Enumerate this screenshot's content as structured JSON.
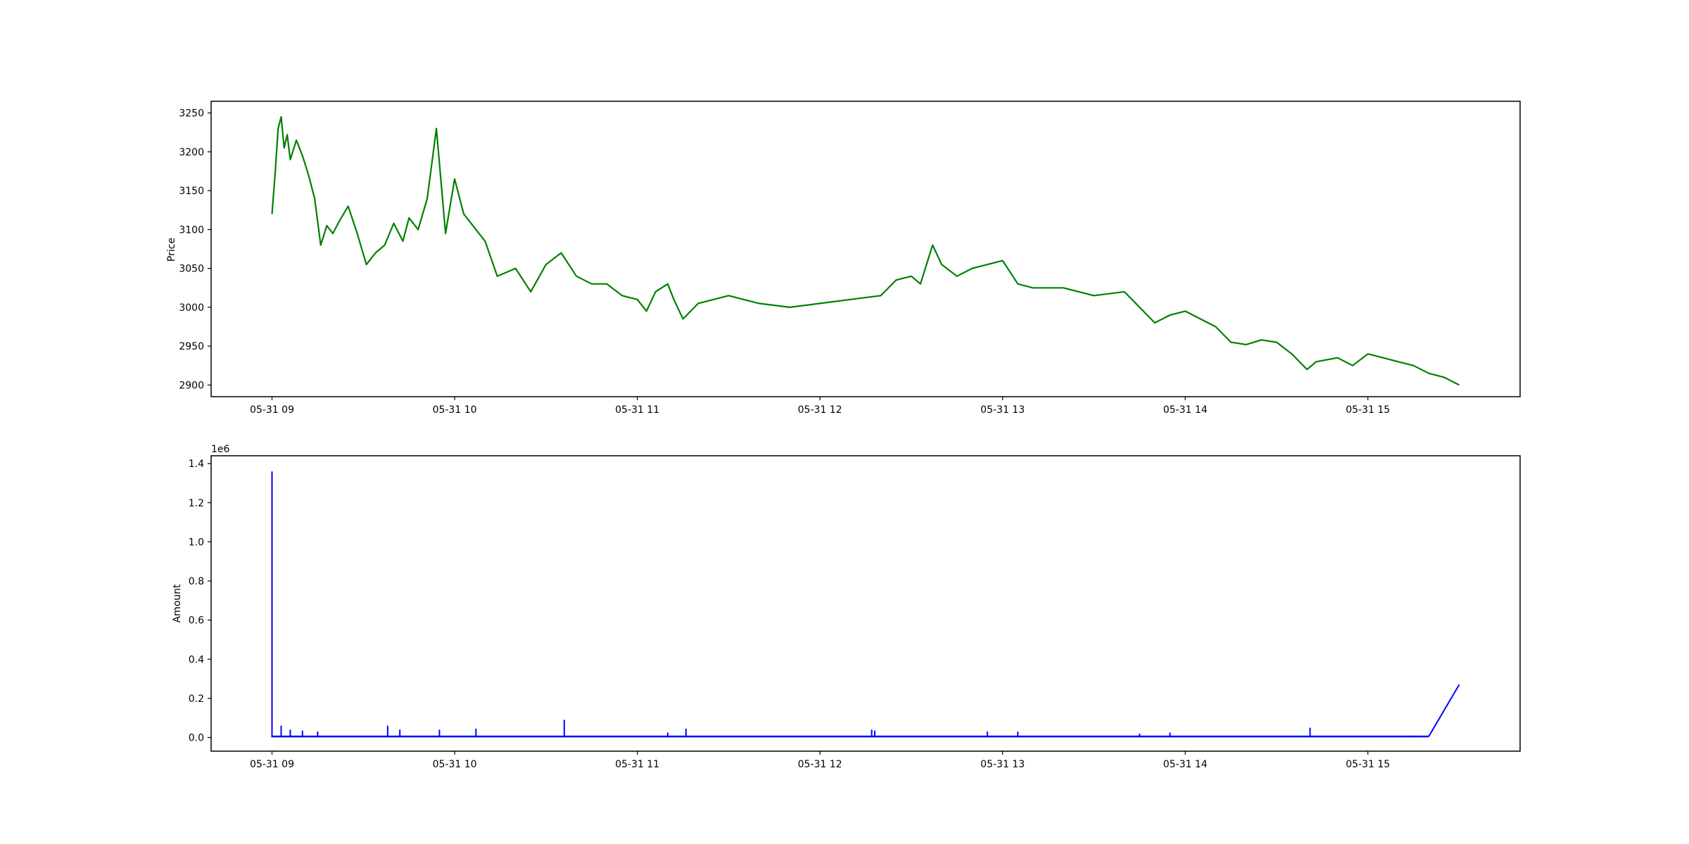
{
  "figure": {
    "background": "#ffffff"
  },
  "chart_data": [
    {
      "type": "line",
      "title": "",
      "xlabel": "",
      "ylabel": "Price",
      "ylim": [
        2885,
        3265
      ],
      "yticks": [
        2900,
        2950,
        3000,
        3050,
        3100,
        3150,
        3200,
        3250
      ],
      "xlim": [
        "05-31 08:40",
        "15:50"
      ],
      "xticks": [
        {
          "label": "05-31 09",
          "x": "09:00"
        },
        {
          "label": "05-31 10",
          "x": "10:00"
        },
        {
          "label": "05-31 11",
          "x": "11:00"
        },
        {
          "label": "05-31 12",
          "x": "12:00"
        },
        {
          "label": "05-31 13",
          "x": "13:00"
        },
        {
          "label": "05-31 14",
          "x": "14:00"
        },
        {
          "label": "05-31 15",
          "x": "15:00"
        }
      ],
      "grid": false,
      "series": [
        {
          "color": "#008000",
          "x": [
            "09:00",
            "09:01",
            "09:02",
            "09:03",
            "09:04",
            "09:05",
            "09:06",
            "09:08",
            "09:10",
            "09:12",
            "09:14",
            "09:16",
            "09:18",
            "09:20",
            "09:22",
            "09:25",
            "09:28",
            "09:31",
            "09:34",
            "09:37",
            "09:40",
            "09:43",
            "09:45",
            "09:48",
            "09:51",
            "09:54",
            "09:57",
            "10:00",
            "10:03",
            "10:05",
            "10:07",
            "10:10",
            "10:14",
            "10:20",
            "10:25",
            "10:30",
            "10:35",
            "10:40",
            "10:45",
            "10:50",
            "10:55",
            "11:00",
            "11:03",
            "11:06",
            "11:10",
            "11:12",
            "11:15",
            "11:20",
            "11:30",
            "11:40",
            "11:50",
            "12:00",
            "12:10",
            "12:20",
            "12:25",
            "12:30",
            "12:33",
            "12:37",
            "12:40",
            "12:45",
            "12:50",
            "12:55",
            "13:00",
            "13:05",
            "13:10",
            "13:20",
            "13:30",
            "13:40",
            "13:45",
            "13:50",
            "13:55",
            "14:00",
            "14:05",
            "14:10",
            "14:15",
            "14:20",
            "14:25",
            "14:30",
            "14:35",
            "14:40",
            "14:43",
            "14:50",
            "14:55",
            "15:00",
            "15:05",
            "15:10",
            "15:15",
            "15:20",
            "15:25",
            "15:30"
          ],
          "y": [
            3120,
            3170,
            3230,
            3245,
            3205,
            3222,
            3190,
            3215,
            3195,
            3170,
            3140,
            3080,
            3105,
            3095,
            3110,
            3130,
            3095,
            3055,
            3070,
            3080,
            3108,
            3085,
            3115,
            3100,
            3140,
            3230,
            3095,
            3165,
            3120,
            3110,
            3100,
            3085,
            3040,
            3050,
            3020,
            3055,
            3070,
            3040,
            3030,
            3030,
            3015,
            3010,
            2995,
            3020,
            3030,
            3010,
            2985,
            3005,
            3015,
            3005,
            3000,
            3005,
            3010,
            3015,
            3035,
            3040,
            3030,
            3080,
            3055,
            3040,
            3050,
            3055,
            3060,
            3030,
            3025,
            3025,
            3015,
            3020,
            3000,
            2980,
            2990,
            2995,
            2985,
            2975,
            2955,
            2952,
            2958,
            2955,
            2940,
            2920,
            2930,
            2935,
            2925,
            2940,
            2935,
            2930,
            2925,
            2915,
            2910,
            2900
          ]
        }
      ]
    },
    {
      "type": "line",
      "title": "",
      "xlabel": "",
      "ylabel": "Amount",
      "offset_text": "1e6",
      "ylim": [
        -0.07,
        1.44
      ],
      "yticks": [
        {
          "value": 0.0,
          "label": "0.0"
        },
        {
          "value": 0.2,
          "label": "0.2"
        },
        {
          "value": 0.4,
          "label": "0.4"
        },
        {
          "value": 0.6,
          "label": "0.6"
        },
        {
          "value": 0.8,
          "label": "0.8"
        },
        {
          "value": 1.0,
          "label": "1.0"
        },
        {
          "value": 1.2,
          "label": "1.2"
        },
        {
          "value": 1.4,
          "label": "1.4"
        }
      ],
      "xlim": [
        "05-31 08:40",
        "15:50"
      ],
      "xticks": [
        {
          "label": "05-31 09",
          "x": "09:00"
        },
        {
          "label": "05-31 10",
          "x": "10:00"
        },
        {
          "label": "05-31 11",
          "x": "11:00"
        },
        {
          "label": "05-31 12",
          "x": "12:00"
        },
        {
          "label": "05-31 13",
          "x": "13:00"
        },
        {
          "label": "05-31 14",
          "x": "14:00"
        },
        {
          "label": "05-31 15",
          "x": "15:00"
        }
      ],
      "grid": false,
      "series": [
        {
          "color": "#0000ff",
          "baseline": 0.005,
          "spikes": [
            {
              "x": "09:00",
              "y": 1.36
            },
            {
              "x": "09:03",
              "y": 0.06
            },
            {
              "x": "09:06",
              "y": 0.04
            },
            {
              "x": "09:10",
              "y": 0.035
            },
            {
              "x": "09:15",
              "y": 0.03
            },
            {
              "x": "09:38",
              "y": 0.06
            },
            {
              "x": "09:42",
              "y": 0.04
            },
            {
              "x": "09:55",
              "y": 0.04
            },
            {
              "x": "10:07",
              "y": 0.045
            },
            {
              "x": "10:36",
              "y": 0.09
            },
            {
              "x": "11:10",
              "y": 0.025
            },
            {
              "x": "11:16",
              "y": 0.045
            },
            {
              "x": "12:17",
              "y": 0.04
            },
            {
              "x": "12:18",
              "y": 0.035
            },
            {
              "x": "12:55",
              "y": 0.03
            },
            {
              "x": "13:05",
              "y": 0.03
            },
            {
              "x": "13:45",
              "y": 0.02
            },
            {
              "x": "13:55",
              "y": 0.025
            },
            {
              "x": "14:41",
              "y": 0.05
            },
            {
              "x": "15:15",
              "y": 0.01
            }
          ],
          "tail": [
            {
              "x": "15:20",
              "y": 0.005
            },
            {
              "x": "15:30",
              "y": 0.27
            }
          ]
        }
      ]
    }
  ]
}
